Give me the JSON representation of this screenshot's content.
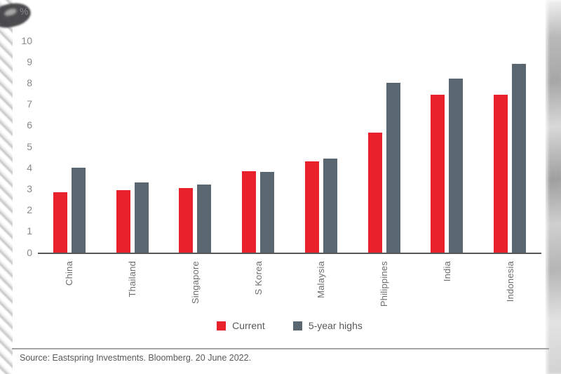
{
  "chart_data": {
    "type": "bar",
    "title": "",
    "unit_label": "%",
    "xlabel": "",
    "ylabel": "%",
    "categories": [
      "China",
      "Thailand",
      "Singapore",
      "S Korea",
      "Malaysia",
      "Philippines",
      "India",
      "Indonesia"
    ],
    "series": [
      {
        "name": "Current",
        "color": "#e8212a",
        "values": [
          2.85,
          2.95,
          3.05,
          3.85,
          4.3,
          5.65,
          7.45,
          7.45
        ]
      },
      {
        "name": "5-year highs",
        "color": "#5a6670",
        "values": [
          4.0,
          3.3,
          3.2,
          3.8,
          4.45,
          8.0,
          8.2,
          8.9
        ]
      }
    ],
    "ylim": [
      0,
      10
    ],
    "yticks": [
      0,
      1,
      2,
      3,
      4,
      5,
      6,
      7,
      8,
      9,
      10
    ],
    "grid": false,
    "legend_position": "bottom-center"
  },
  "footer": {
    "source": "Source: Eastspring Investments. Bloomberg. 20 June 2022."
  },
  "colors": {
    "accent_red": "#e8212a",
    "slate_gray": "#5a6670",
    "axis_line": "#57585a",
    "tick_text": "#87898c",
    "category_text": "#6d6e71",
    "source_text": "#58595b",
    "divider": "#a3a3a3"
  },
  "icons": {
    "legend_current_swatch": "red-square",
    "legend_highs_swatch": "gray-square"
  }
}
